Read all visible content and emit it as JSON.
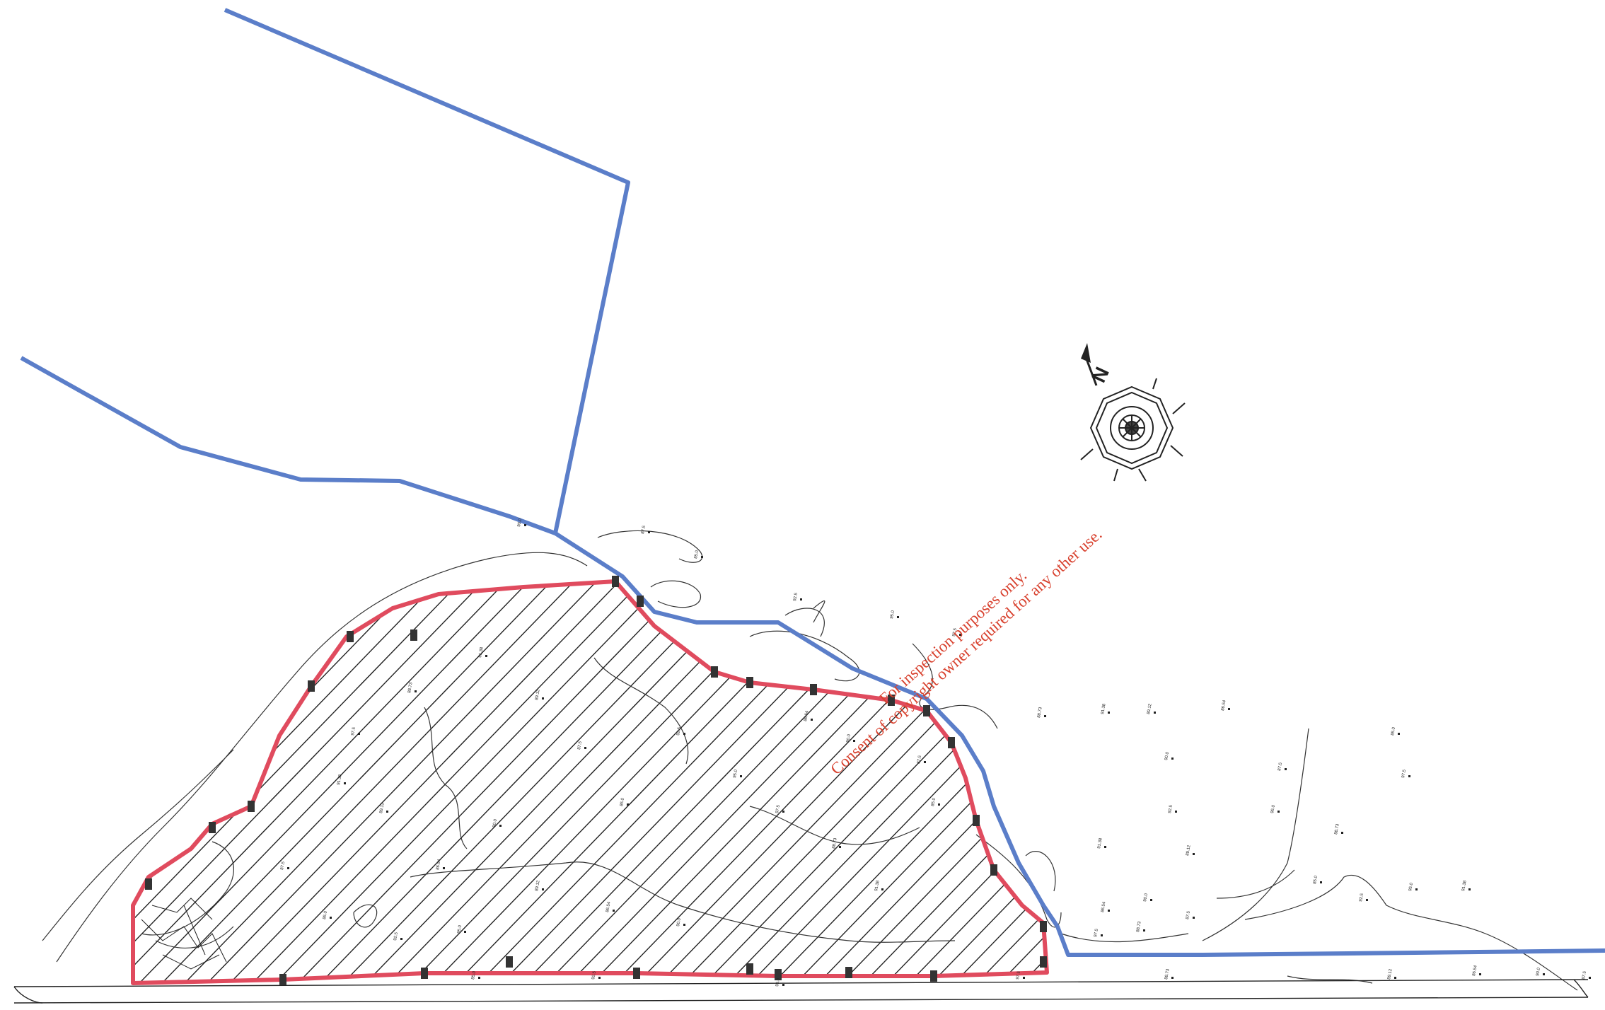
{
  "map": {
    "watermark": {
      "line1": "For inspection purposes only.",
      "line2": "Consent of copyright owner required for any other use."
    },
    "north_label": "N",
    "spot_level_samples": [
      "90.0",
      "87.5",
      "85.0",
      "92.5",
      "95.0",
      "97.5",
      "88.73",
      "91.38",
      "89.12",
      "86.54"
    ],
    "colors": {
      "site_boundary": "#e04b5e",
      "ownership_boundary": "#5b7ec9",
      "linework": "#222222",
      "watermark": "#d8412e"
    }
  }
}
